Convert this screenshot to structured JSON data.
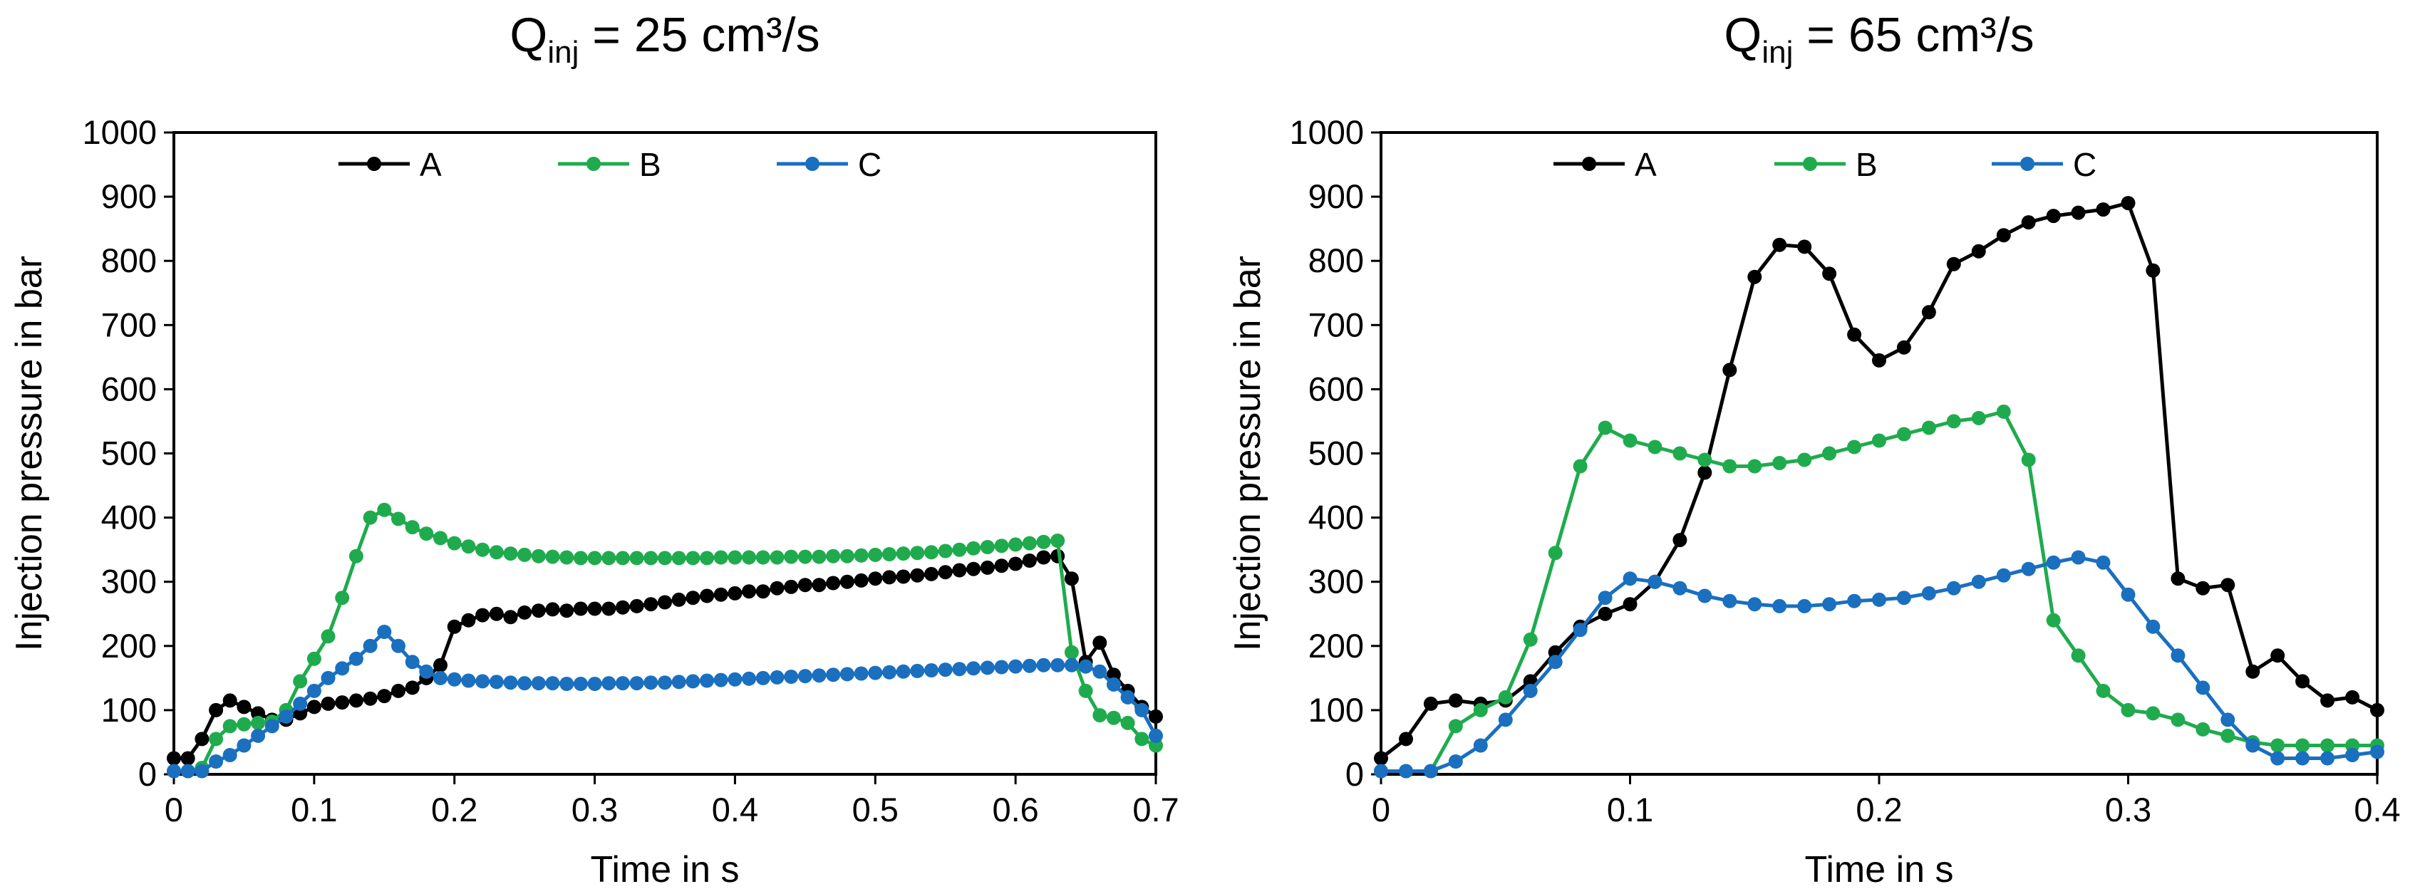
{
  "chart_data": [
    {
      "type": "line",
      "title": "Q",
      "title_sub": "inj",
      "title_tail": " = 25 cm³/s",
      "xlabel": "Time in s",
      "ylabel": "Injection pressure in bar",
      "xlim": [
        0,
        0.7
      ],
      "ylim": [
        0,
        1000
      ],
      "xticks": [
        0,
        0.1,
        0.2,
        0.3,
        0.4,
        0.5,
        0.6,
        0.7
      ],
      "xtick_labels": [
        "0",
        "0.1",
        "0.2",
        "0.3",
        "0.4",
        "0.5",
        "0.6",
        "0.7"
      ],
      "yticks": [
        0,
        100,
        200,
        300,
        400,
        500,
        600,
        700,
        800,
        900,
        1000
      ],
      "ytick_labels": [
        "0",
        "100",
        "200",
        "300",
        "400",
        "500",
        "600",
        "700",
        "800",
        "900",
        "1000"
      ],
      "grid": false,
      "legend_position": "top",
      "series": [
        {
          "name": "A",
          "color": "#000000",
          "x": [
            0,
            0.01,
            0.02,
            0.03,
            0.04,
            0.05,
            0.06,
            0.07,
            0.08,
            0.09,
            0.1,
            0.11,
            0.12,
            0.13,
            0.14,
            0.15,
            0.16,
            0.17,
            0.18,
            0.19,
            0.2,
            0.21,
            0.22,
            0.23,
            0.24,
            0.25,
            0.26,
            0.27,
            0.28,
            0.29,
            0.3,
            0.31,
            0.32,
            0.33,
            0.34,
            0.35,
            0.36,
            0.37,
            0.38,
            0.39,
            0.4,
            0.41,
            0.42,
            0.43,
            0.44,
            0.45,
            0.46,
            0.47,
            0.48,
            0.49,
            0.5,
            0.51,
            0.52,
            0.53,
            0.54,
            0.55,
            0.56,
            0.57,
            0.58,
            0.59,
            0.6,
            0.61,
            0.62,
            0.63,
            0.64,
            0.65,
            0.66,
            0.67,
            0.68,
            0.69,
            0.7
          ],
          "y": [
            25,
            25,
            55,
            100,
            115,
            105,
            95,
            85,
            85,
            95,
            105,
            110,
            112,
            115,
            118,
            122,
            130,
            135,
            150,
            170,
            230,
            240,
            248,
            250,
            245,
            252,
            255,
            257,
            255,
            258,
            258,
            258,
            260,
            262,
            265,
            268,
            272,
            275,
            278,
            280,
            282,
            285,
            285,
            290,
            292,
            295,
            295,
            298,
            300,
            302,
            305,
            307,
            308,
            310,
            312,
            315,
            318,
            320,
            322,
            325,
            328,
            333,
            338,
            340,
            305,
            175,
            205,
            155,
            130,
            105,
            90
          ]
        },
        {
          "name": "B",
          "color": "#1fab4d",
          "x": [
            0,
            0.01,
            0.02,
            0.03,
            0.04,
            0.05,
            0.06,
            0.07,
            0.08,
            0.09,
            0.1,
            0.11,
            0.12,
            0.13,
            0.14,
            0.15,
            0.16,
            0.17,
            0.18,
            0.19,
            0.2,
            0.21,
            0.22,
            0.23,
            0.24,
            0.25,
            0.26,
            0.27,
            0.28,
            0.29,
            0.3,
            0.31,
            0.32,
            0.33,
            0.34,
            0.35,
            0.36,
            0.37,
            0.38,
            0.39,
            0.4,
            0.41,
            0.42,
            0.43,
            0.44,
            0.45,
            0.46,
            0.47,
            0.48,
            0.49,
            0.5,
            0.51,
            0.52,
            0.53,
            0.54,
            0.55,
            0.56,
            0.57,
            0.58,
            0.59,
            0.6,
            0.61,
            0.62,
            0.63,
            0.64,
            0.65,
            0.66,
            0.67,
            0.68,
            0.69,
            0.7
          ],
          "y": [
            5,
            5,
            10,
            55,
            75,
            78,
            80,
            82,
            100,
            145,
            180,
            215,
            275,
            340,
            400,
            412,
            398,
            385,
            375,
            368,
            360,
            355,
            350,
            346,
            344,
            342,
            340,
            339,
            338,
            337,
            337,
            337,
            337,
            337,
            337,
            337,
            337,
            337,
            337,
            338,
            338,
            338,
            338,
            338,
            339,
            339,
            339,
            340,
            340,
            341,
            342,
            343,
            344,
            345,
            346,
            348,
            350,
            352,
            354,
            356,
            358,
            360,
            362,
            364,
            190,
            130,
            92,
            88,
            80,
            55,
            45
          ]
        },
        {
          "name": "C",
          "color": "#1a6fbf",
          "x": [
            0,
            0.01,
            0.02,
            0.03,
            0.04,
            0.05,
            0.06,
            0.07,
            0.08,
            0.09,
            0.1,
            0.11,
            0.12,
            0.13,
            0.14,
            0.15,
            0.16,
            0.17,
            0.18,
            0.19,
            0.2,
            0.21,
            0.22,
            0.23,
            0.24,
            0.25,
            0.26,
            0.27,
            0.28,
            0.29,
            0.3,
            0.31,
            0.32,
            0.33,
            0.34,
            0.35,
            0.36,
            0.37,
            0.38,
            0.39,
            0.4,
            0.41,
            0.42,
            0.43,
            0.44,
            0.45,
            0.46,
            0.47,
            0.48,
            0.49,
            0.5,
            0.51,
            0.52,
            0.53,
            0.54,
            0.55,
            0.56,
            0.57,
            0.58,
            0.59,
            0.6,
            0.61,
            0.62,
            0.63,
            0.64,
            0.65,
            0.66,
            0.67,
            0.68,
            0.69,
            0.7
          ],
          "y": [
            5,
            5,
            5,
            20,
            30,
            45,
            60,
            75,
            90,
            110,
            130,
            150,
            165,
            180,
            200,
            222,
            200,
            175,
            160,
            150,
            148,
            146,
            145,
            144,
            143,
            142,
            142,
            142,
            141,
            141,
            141,
            142,
            142,
            142,
            143,
            143,
            144,
            145,
            146,
            147,
            148,
            149,
            150,
            151,
            152,
            153,
            154,
            155,
            156,
            157,
            158,
            159,
            160,
            161,
            162,
            163,
            164,
            165,
            166,
            167,
            168,
            169,
            170,
            170,
            170,
            168,
            160,
            140,
            120,
            100,
            60
          ]
        }
      ]
    },
    {
      "type": "line",
      "title": "Q",
      "title_sub": "inj",
      "title_tail": " = 65 cm³/s",
      "xlabel": "Time in s",
      "ylabel": "Injection pressure in bar",
      "xlim": [
        0,
        0.4
      ],
      "ylim": [
        0,
        1000
      ],
      "xticks": [
        0,
        0.1,
        0.2,
        0.3,
        0.4
      ],
      "xtick_labels": [
        "0",
        "0.1",
        "0.2",
        "0.3",
        "0.4"
      ],
      "yticks": [
        0,
        100,
        200,
        300,
        400,
        500,
        600,
        700,
        800,
        900,
        1000
      ],
      "ytick_labels": [
        "0",
        "100",
        "200",
        "300",
        "400",
        "500",
        "600",
        "700",
        "800",
        "900",
        "1000"
      ],
      "grid": false,
      "legend_position": "top",
      "series": [
        {
          "name": "A",
          "color": "#000000",
          "x": [
            0,
            0.01,
            0.02,
            0.03,
            0.04,
            0.05,
            0.06,
            0.07,
            0.08,
            0.09,
            0.1,
            0.11,
            0.12,
            0.13,
            0.14,
            0.15,
            0.16,
            0.17,
            0.18,
            0.19,
            0.2,
            0.21,
            0.22,
            0.23,
            0.24,
            0.25,
            0.26,
            0.27,
            0.28,
            0.29,
            0.3,
            0.31,
            0.32,
            0.33,
            0.34,
            0.35,
            0.36,
            0.37,
            0.38,
            0.39,
            0.4
          ],
          "y": [
            25,
            55,
            110,
            115,
            110,
            115,
            145,
            190,
            230,
            250,
            265,
            300,
            365,
            470,
            630,
            775,
            825,
            822,
            780,
            685,
            645,
            665,
            720,
            795,
            815,
            840,
            860,
            870,
            875,
            880,
            890,
            785,
            305,
            290,
            295,
            160,
            185,
            145,
            115,
            120,
            100
          ]
        },
        {
          "name": "B",
          "color": "#1fab4d",
          "x": [
            0,
            0.01,
            0.02,
            0.03,
            0.04,
            0.05,
            0.06,
            0.07,
            0.08,
            0.09,
            0.1,
            0.11,
            0.12,
            0.13,
            0.14,
            0.15,
            0.16,
            0.17,
            0.18,
            0.19,
            0.2,
            0.21,
            0.22,
            0.23,
            0.24,
            0.25,
            0.26,
            0.27,
            0.28,
            0.29,
            0.3,
            0.31,
            0.32,
            0.33,
            0.34,
            0.35,
            0.36,
            0.37,
            0.38,
            0.39,
            0.4
          ],
          "y": [
            5,
            5,
            5,
            75,
            100,
            120,
            210,
            345,
            480,
            540,
            520,
            510,
            500,
            490,
            480,
            480,
            485,
            490,
            500,
            510,
            520,
            530,
            540,
            550,
            555,
            565,
            490,
            240,
            185,
            130,
            100,
            95,
            85,
            70,
            60,
            50,
            45,
            45,
            45,
            45,
            45
          ]
        },
        {
          "name": "C",
          "color": "#1a6fbf",
          "x": [
            0,
            0.01,
            0.02,
            0.03,
            0.04,
            0.05,
            0.06,
            0.07,
            0.08,
            0.09,
            0.1,
            0.11,
            0.12,
            0.13,
            0.14,
            0.15,
            0.16,
            0.17,
            0.18,
            0.19,
            0.2,
            0.21,
            0.22,
            0.23,
            0.24,
            0.25,
            0.26,
            0.27,
            0.28,
            0.29,
            0.3,
            0.31,
            0.32,
            0.33,
            0.34,
            0.35,
            0.36,
            0.37,
            0.38,
            0.39,
            0.4
          ],
          "y": [
            5,
            5,
            5,
            20,
            45,
            85,
            130,
            175,
            225,
            275,
            305,
            300,
            290,
            278,
            270,
            265,
            262,
            262,
            265,
            270,
            272,
            275,
            282,
            290,
            300,
            310,
            320,
            330,
            338,
            330,
            280,
            230,
            185,
            135,
            85,
            45,
            25,
            25,
            25,
            30,
            35
          ]
        }
      ]
    }
  ]
}
